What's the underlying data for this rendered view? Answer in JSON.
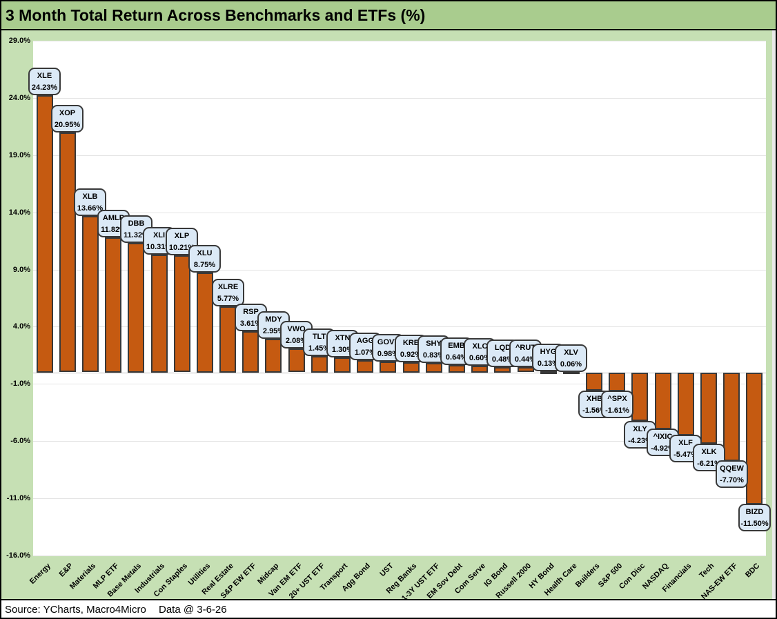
{
  "title": "3 Month Total Return Across Benchmarks and ETFs (%)",
  "footer": {
    "source": "Source: YCharts, Macro4Micro",
    "data_date": "Data @ 3-6-26"
  },
  "colors": {
    "title_band_bg": "#A9CC8E",
    "chart_bg": "#C6E0B4",
    "plot_bg": "#FFFFFF",
    "bar_fill": "#C55A11",
    "bar_border": "#383838",
    "callout_fill": "#DBE9F6",
    "callout_border": "#383838",
    "gridline": "#E4E4E4",
    "zero_line": "#BFBFBF",
    "text": "#000000"
  },
  "chart_data": {
    "type": "bar",
    "title": "3 Month Total Return Across Benchmarks and ETFs (%)",
    "xlabel": "",
    "ylabel": "",
    "ylim": [
      -16,
      29
    ],
    "grid": true,
    "legend": false,
    "categories": [
      "Energy",
      "E&P",
      "Materials",
      "MLP ETF",
      "Base Metals",
      "Industrials",
      "Con Staples",
      "Utilities",
      "Real Estate",
      "S&P EW ETF",
      "Midcap",
      "Van EM ETF",
      "20+ UST ETF",
      "Transport",
      "Agg Bond",
      "UST",
      "Reg Banks",
      "1-3Y UST ETF",
      "EM Sov Debt",
      "Com Serve",
      "IG Bond",
      "Russell 2000",
      "HY Bond",
      "Health Care",
      "Builders",
      "S&P 500",
      "Con Disc",
      "NASDAQ",
      "Financials",
      "Tech",
      "NAS-EW ETF",
      "BDC"
    ],
    "tickers": [
      "XLE",
      "XOP",
      "XLB",
      "AMLP",
      "DBB",
      "XLI",
      "XLP",
      "XLU",
      "XLRE",
      "RSP",
      "MDY",
      "VWO",
      "TLT",
      "XTN",
      "AGG",
      "GOVT",
      "KRE",
      "SHY",
      "EMB",
      "XLC",
      "LQD",
      "^RUT",
      "HYG",
      "XLV",
      "XHB",
      "^SPX",
      "XLY",
      "^IXIC",
      "XLF",
      "XLK",
      "QQEW",
      "BIZD"
    ],
    "values": [
      24.23,
      20.95,
      13.66,
      11.82,
      11.32,
      10.31,
      10.21,
      8.75,
      5.77,
      3.61,
      2.95,
      2.08,
      1.45,
      1.3,
      1.07,
      0.98,
      0.92,
      0.83,
      0.64,
      0.6,
      0.48,
      0.44,
      0.13,
      0.06,
      -1.56,
      -1.61,
      -4.23,
      -4.92,
      -5.47,
      -6.21,
      -7.7,
      -11.5
    ],
    "y_ticks": [
      {
        "label": "29.0%",
        "value": 29
      },
      {
        "label": "24.0%",
        "value": 24
      },
      {
        "label": "19.0%",
        "value": 19
      },
      {
        "label": "14.0%",
        "value": 14
      },
      {
        "label": "9.0%",
        "value": 9
      },
      {
        "label": "4.0%",
        "value": 4
      },
      {
        "label": "-1.0%",
        "value": -1
      },
      {
        "label": "-6.0%",
        "value": -6
      },
      {
        "label": "-11.0%",
        "value": -11
      },
      {
        "label": "-16.0%",
        "value": -16
      }
    ]
  }
}
